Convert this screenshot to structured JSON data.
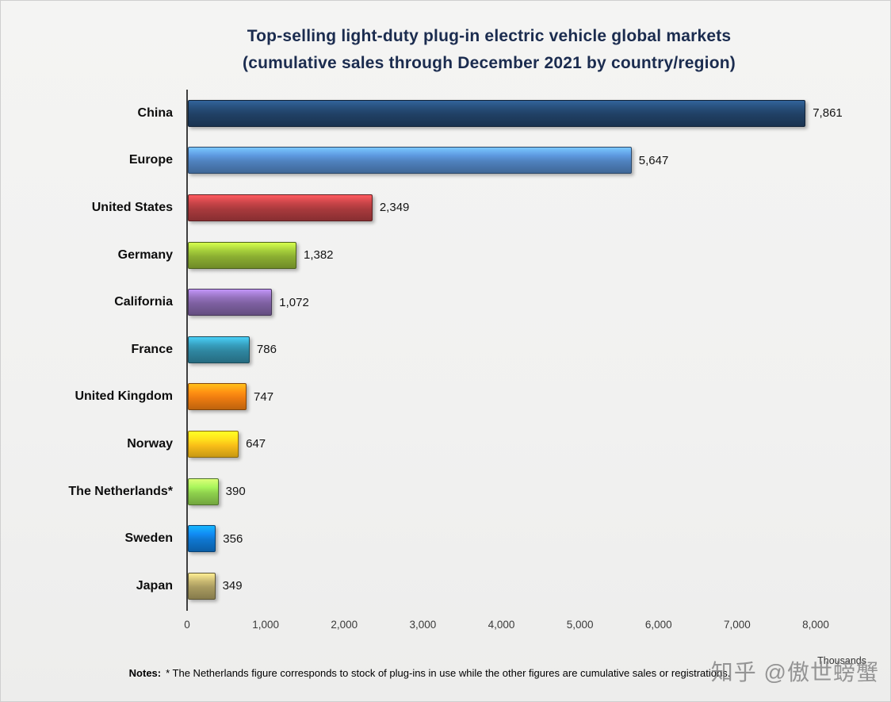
{
  "title": {
    "line1": "Top-selling light-duty plug-in electric vehicle global markets",
    "line2": "(cumulative sales through December 2021 by country/region)"
  },
  "chart_data": {
    "type": "bar",
    "orientation": "horizontal",
    "title": "Top-selling light-duty plug-in electric vehicle global markets (cumulative sales through December 2021 by country/region)",
    "categories": [
      "China",
      "Europe",
      "United States",
      "Germany",
      "California",
      "France",
      "United Kingdom",
      "Norway",
      "The Netherlands*",
      "Sweden",
      "Japan"
    ],
    "values": [
      7861,
      5647,
      2349,
      1382,
      1072,
      786,
      747,
      647,
      390,
      356,
      349
    ],
    "value_labels": [
      "7,861",
      "5,647",
      "2,349",
      "1,382",
      "1,072",
      "786",
      "747",
      "647",
      "390",
      "356",
      "349"
    ],
    "colors": [
      "#204064",
      "#4F81BD",
      "#A93A3D",
      "#8BAE32",
      "#7D60A0",
      "#2F86A0",
      "#EE7C10",
      "#F9BE18",
      "#8ED04D",
      "#0E76CF",
      "#A89A5F"
    ],
    "xlim": [
      0,
      8000
    ],
    "tick_labels": [
      "0",
      "1,000",
      "2,000",
      "3,000",
      "4,000",
      "5,000",
      "6,000",
      "7,000",
      "8,000"
    ],
    "xlabel": "Thousands",
    "ylabel": "",
    "grid": false,
    "legend": false
  },
  "footer": {
    "notes_label": "Notes:",
    "notes_text": "* The Netherlands figure corresponds to stock of plug-ins in use while the other figures are cumulative sales or registrations.",
    "thousands_label": "Thousands",
    "watermark": "知乎 @傲世螃蟹"
  }
}
